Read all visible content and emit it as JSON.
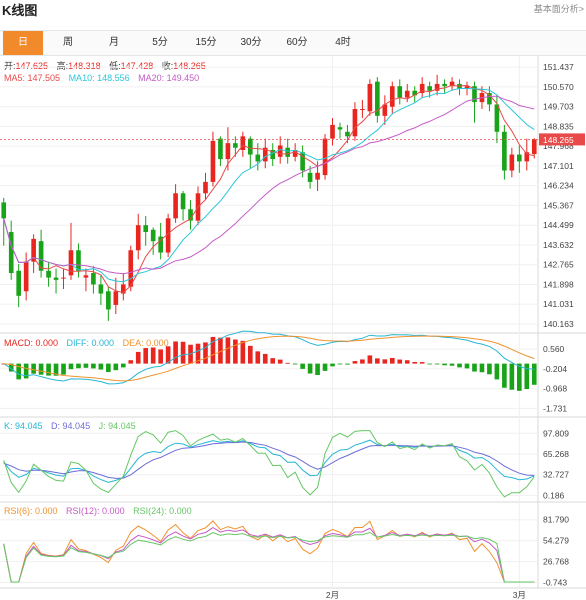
{
  "header": {
    "title": "K线图",
    "top_right_link": "基本面分析>"
  },
  "tabs": [
    {
      "label": "日",
      "active": true
    },
    {
      "label": "周",
      "active": false
    },
    {
      "label": "月",
      "active": false
    },
    {
      "label": "5分",
      "active": false
    },
    {
      "label": "15分",
      "active": false
    },
    {
      "label": "30分",
      "active": false
    },
    {
      "label": "60分",
      "active": false
    },
    {
      "label": "4时",
      "active": false
    }
  ],
  "ohlc_legend": {
    "open_label": "开:",
    "open": "147.625",
    "high_label": "高:",
    "high": "148.318",
    "low_label": "低:",
    "low": "147.428",
    "close_label": "收:",
    "close": "148.265"
  },
  "ma_legend": {
    "ma5": "MA5: 147.505",
    "ma10": "MA10: 148.556",
    "ma20": "MA20: 149.450"
  },
  "macd_legend": {
    "macd": "MACD: 0.000",
    "diff": "DIFF: 0.000",
    "dea": "DEA: 0.000"
  },
  "kdj_legend": {
    "k": "K: 94.045",
    "d": "D: 94.045",
    "j": "J: 94.045"
  },
  "rsi_legend": {
    "rsi6": "RSI(6): 0.000",
    "rsi12": "RSI(12): 0.000",
    "rsi24": "RSI(24): 0.000"
  },
  "current_price_tag": "148.265",
  "colors": {
    "up": "#e8251f",
    "down": "#19a319",
    "ma5": "#e84a4a",
    "ma10": "#2bc6d9",
    "ma20": "#c55bc8",
    "macd_dif": "#27b6d4",
    "macd_dea": "#f0922c",
    "k": "#27b6d4",
    "d": "#6c6cd8",
    "j": "#65c765",
    "rsi6": "#f0922c",
    "rsi12": "#c55bc8",
    "rsi24": "#65c765",
    "price_line": "#e84a4a"
  },
  "chart_data": [
    {
      "type": "candlestick",
      "title": "",
      "x_tick_labels": [
        "2月",
        "3月"
      ],
      "y_ticks": [
        151.437,
        150.57,
        149.703,
        148.835,
        147.968,
        147.101,
        146.234,
        145.367,
        144.499,
        143.632,
        142.765,
        141.898,
        141.031,
        140.163
      ],
      "y_tick_labels": [
        "151.437",
        "150.570",
        "149.703",
        "148.835",
        "147.968",
        "147.101",
        "146.234",
        "145.367",
        "144.499",
        "143.632",
        "142.765",
        "141.898",
        "141.031",
        "140.163"
      ],
      "ylim": [
        139.9,
        151.75
      ],
      "current_price": 148.265,
      "x_month_index": [
        44,
        69
      ],
      "candles": [
        [
          145.5,
          144.8,
          145.7,
          143.6
        ],
        [
          144.2,
          142.4,
          144.7,
          142.1
        ],
        [
          142.5,
          141.4,
          142.8,
          140.9
        ],
        [
          141.6,
          142.9,
          143.3,
          141.2
        ],
        [
          142.9,
          143.9,
          144.1,
          142.4
        ],
        [
          143.8,
          142.5,
          144.3,
          142.2
        ],
        [
          142.5,
          142.2,
          142.9,
          141.8
        ],
        [
          142.2,
          142.1,
          142.6,
          141.5
        ],
        [
          142.2,
          142.2,
          142.6,
          141.7
        ],
        [
          142.3,
          143.4,
          144.6,
          142.1
        ],
        [
          143.4,
          142.5,
          143.7,
          142.2
        ],
        [
          142.2,
          142.3,
          142.6,
          141.6
        ],
        [
          142.4,
          141.9,
          142.7,
          141.5
        ],
        [
          141.9,
          141.5,
          142.3,
          141.0
        ],
        [
          141.6,
          140.8,
          141.8,
          140.3
        ],
        [
          141.0,
          141.6,
          142.2,
          140.6
        ],
        [
          141.5,
          141.9,
          142.4,
          141.2
        ],
        [
          141.8,
          143.4,
          143.6,
          141.6
        ],
        [
          143.4,
          144.5,
          145.0,
          143.0
        ],
        [
          144.5,
          144.2,
          144.9,
          143.6
        ],
        [
          144.3,
          143.8,
          144.4,
          143.2
        ],
        [
          144.0,
          143.3,
          144.6,
          143.0
        ],
        [
          143.3,
          144.8,
          145.0,
          143.1
        ],
        [
          144.8,
          145.9,
          146.3,
          144.6
        ],
        [
          145.9,
          145.2,
          146.0,
          144.7
        ],
        [
          145.2,
          144.7,
          145.6,
          144.3
        ],
        [
          144.7,
          145.9,
          146.2,
          144.5
        ],
        [
          145.9,
          146.4,
          146.8,
          145.6
        ],
        [
          146.4,
          148.2,
          148.6,
          146.2
        ],
        [
          148.3,
          147.4,
          148.4,
          147.1
        ],
        [
          147.4,
          148.1,
          148.8,
          146.9
        ],
        [
          148.1,
          147.9,
          148.4,
          147.5
        ],
        [
          147.8,
          148.4,
          148.6,
          147.5
        ],
        [
          148.3,
          147.6,
          148.4,
          147.0
        ],
        [
          147.6,
          147.3,
          148.1,
          146.9
        ],
        [
          147.3,
          147.9,
          148.3,
          147.0
        ],
        [
          147.8,
          147.4,
          148.1,
          147.1
        ],
        [
          147.5,
          148.0,
          148.4,
          147.2
        ],
        [
          147.9,
          147.5,
          148.3,
          147.2
        ],
        [
          147.5,
          147.8,
          148.1,
          147.3
        ],
        [
          147.7,
          146.9,
          148.0,
          146.6
        ],
        [
          146.8,
          146.4,
          147.1,
          146.1
        ],
        [
          146.5,
          146.8,
          147.3,
          146.0
        ],
        [
          146.7,
          148.3,
          148.5,
          146.5
        ],
        [
          148.3,
          148.9,
          149.2,
          148.0
        ],
        [
          148.8,
          148.7,
          149.0,
          148.3
        ],
        [
          148.6,
          148.4,
          148.9,
          148.1
        ],
        [
          148.4,
          149.6,
          149.9,
          148.2
        ],
        [
          149.6,
          149.6,
          150.0,
          149.2
        ],
        [
          149.5,
          150.7,
          150.9,
          149.3
        ],
        [
          150.8,
          149.3,
          151.0,
          149.0
        ],
        [
          149.3,
          149.8,
          150.2,
          148.9
        ],
        [
          149.7,
          150.6,
          150.8,
          149.4
        ],
        [
          150.6,
          150.1,
          150.9,
          149.8
        ],
        [
          150.1,
          150.4,
          150.7,
          149.9
        ],
        [
          150.4,
          150.2,
          150.6,
          149.9
        ],
        [
          150.3,
          150.7,
          151.0,
          150.1
        ],
        [
          150.6,
          150.4,
          150.8,
          150.1
        ],
        [
          150.4,
          150.7,
          151.1,
          150.2
        ],
        [
          150.7,
          150.6,
          150.9,
          150.3
        ],
        [
          150.6,
          150.8,
          151.0,
          150.4
        ],
        [
          150.7,
          150.5,
          150.9,
          150.2
        ],
        [
          150.5,
          150.6,
          150.8,
          150.2
        ],
        [
          150.6,
          149.9,
          150.8,
          149.0
        ],
        [
          149.9,
          150.3,
          150.6,
          149.6
        ],
        [
          150.3,
          149.8,
          150.6,
          149.5
        ],
        [
          149.8,
          148.6,
          150.2,
          148.1
        ],
        [
          148.6,
          146.9,
          148.9,
          146.5
        ],
        [
          146.9,
          147.6,
          147.9,
          146.6
        ],
        [
          147.6,
          147.3,
          148.0,
          146.8
        ],
        [
          147.3,
          147.7,
          148.3,
          146.9
        ],
        [
          147.625,
          148.265,
          148.318,
          147.428
        ]
      ]
    },
    {
      "type": "macd",
      "y_tick_labels": [
        "0.560",
        "-0.204",
        "-0.968",
        "-1.731"
      ],
      "y_ticks": [
        0.56,
        -0.204,
        -0.968,
        -1.731
      ],
      "ylim": [
        -1.95,
        0.72
      ]
    },
    {
      "type": "kdj",
      "y_tick_labels": [
        "97.809",
        "65.268",
        "32.727",
        "0.186"
      ],
      "y_ticks": [
        97.809,
        65.268,
        32.727,
        0.186
      ],
      "ylim": [
        -4,
        103
      ]
    },
    {
      "type": "rsi",
      "y_tick_labels": [
        "81.790",
        "54.279",
        "26.768",
        "-0.743"
      ],
      "y_ticks": [
        81.79,
        54.279,
        26.768,
        -0.743
      ],
      "ylim": [
        -4,
        88
      ]
    }
  ]
}
